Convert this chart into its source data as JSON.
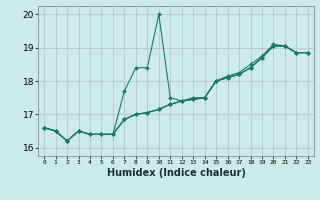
{
  "xlabel": "Humidex (Indice chaleur)",
  "xlim": [
    -0.5,
    23.5
  ],
  "ylim": [
    15.75,
    20.25
  ],
  "yticks": [
    16,
    17,
    18,
    19,
    20
  ],
  "bg_color": "#cdeaea",
  "grid_color": "#b8cccc",
  "line_color": "#1a7a6a",
  "series": [
    [
      16.6,
      16.5,
      16.2,
      16.5,
      16.4,
      16.4,
      16.4,
      17.7,
      18.4,
      18.4,
      20.0,
      17.5,
      17.4,
      17.5,
      17.5,
      18.0,
      18.15,
      18.25,
      18.5,
      18.75,
      19.1,
      19.05,
      18.85,
      18.85
    ],
    [
      16.6,
      16.5,
      16.2,
      16.5,
      16.4,
      16.4,
      16.4,
      16.85,
      17.0,
      17.05,
      17.15,
      17.3,
      17.4,
      17.45,
      17.5,
      18.0,
      18.1,
      18.2,
      18.4,
      18.7,
      19.05,
      19.05,
      18.85,
      18.85
    ],
    [
      16.6,
      16.5,
      16.2,
      16.5,
      16.4,
      16.4,
      16.4,
      16.85,
      17.0,
      17.05,
      17.15,
      17.3,
      17.4,
      17.45,
      17.5,
      18.0,
      18.1,
      18.2,
      18.4,
      18.7,
      19.05,
      19.05,
      18.85,
      18.85
    ],
    [
      16.6,
      16.5,
      16.2,
      16.5,
      16.4,
      16.4,
      16.4,
      16.85,
      17.0,
      17.05,
      17.15,
      17.3,
      17.4,
      17.45,
      17.5,
      18.0,
      18.1,
      18.2,
      18.4,
      18.7,
      19.05,
      19.05,
      18.85,
      18.85
    ]
  ]
}
